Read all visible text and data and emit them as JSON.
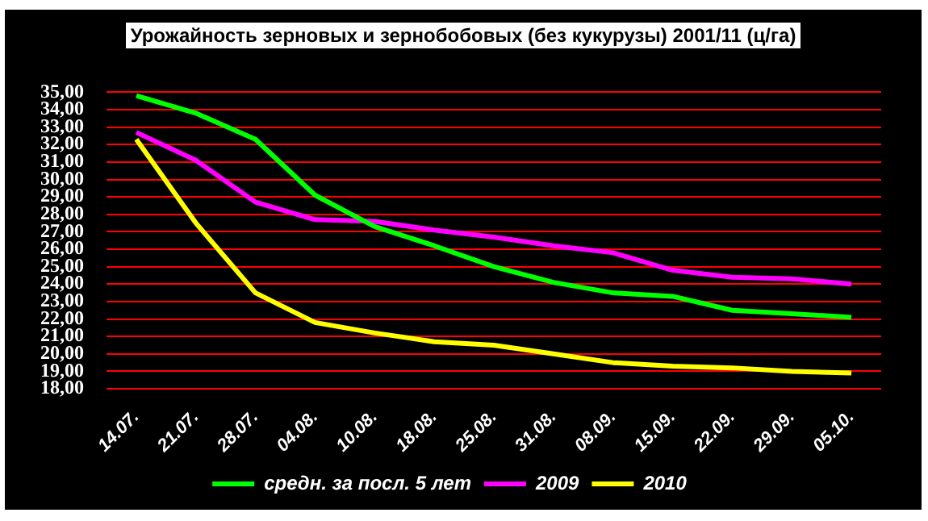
{
  "chart_data": {
    "type": "line",
    "title": "Урожайность зерновых и зернобобовых (без кукурузы) 2001/11 (ц/га)",
    "categories": [
      "14.07.",
      "21.07.",
      "28.07.",
      "04.08.",
      "10.08.",
      "18.08.",
      "25.08.",
      "31.08.",
      "08.09.",
      "15.09.",
      "22.09.",
      "29.09.",
      "05.10."
    ],
    "series": [
      {
        "name": "средн. за посл. 5 лет",
        "color": "#00ff00",
        "values": [
          34.8,
          33.8,
          32.3,
          29.1,
          27.3,
          26.2,
          25.0,
          24.1,
          23.5,
          23.3,
          22.5,
          22.3,
          22.1
        ]
      },
      {
        "name": "2009",
        "color": "#ff00ff",
        "values": [
          32.7,
          31.1,
          28.7,
          27.7,
          27.6,
          27.1,
          26.7,
          26.2,
          25.8,
          24.8,
          24.4,
          24.3,
          24.0
        ]
      },
      {
        "name": "2010",
        "color": "#ffff00",
        "values": [
          32.3,
          27.5,
          23.5,
          21.8,
          21.2,
          20.7,
          20.5,
          20.0,
          19.5,
          19.3,
          19.2,
          19.0,
          18.9
        ]
      }
    ],
    "ylim": [
      18,
      35
    ],
    "yticks": [
      {
        "value": 18,
        "label": "18,00"
      },
      {
        "value": 19,
        "label": "19,00"
      },
      {
        "value": 20,
        "label": "20,00"
      },
      {
        "value": 21,
        "label": "21,00"
      },
      {
        "value": 22,
        "label": "22,00"
      },
      {
        "value": 23,
        "label": "23,00"
      },
      {
        "value": 24,
        "label": "24,00"
      },
      {
        "value": 25,
        "label": "25,00"
      },
      {
        "value": 26,
        "label": "26,00"
      },
      {
        "value": 27,
        "label": "27,00"
      },
      {
        "value": 28,
        "label": "28,00"
      },
      {
        "value": 29,
        "label": "29,00"
      },
      {
        "value": 30,
        "label": "30,00"
      },
      {
        "value": 31,
        "label": "31,00"
      },
      {
        "value": 32,
        "label": "32,00"
      },
      {
        "value": 33,
        "label": "33,00"
      },
      {
        "value": 34,
        "label": "34,00"
      },
      {
        "value": 35,
        "label": "35,00"
      }
    ],
    "grid": "y",
    "legend": "bottom",
    "marker": "none",
    "line_style": "solid"
  }
}
